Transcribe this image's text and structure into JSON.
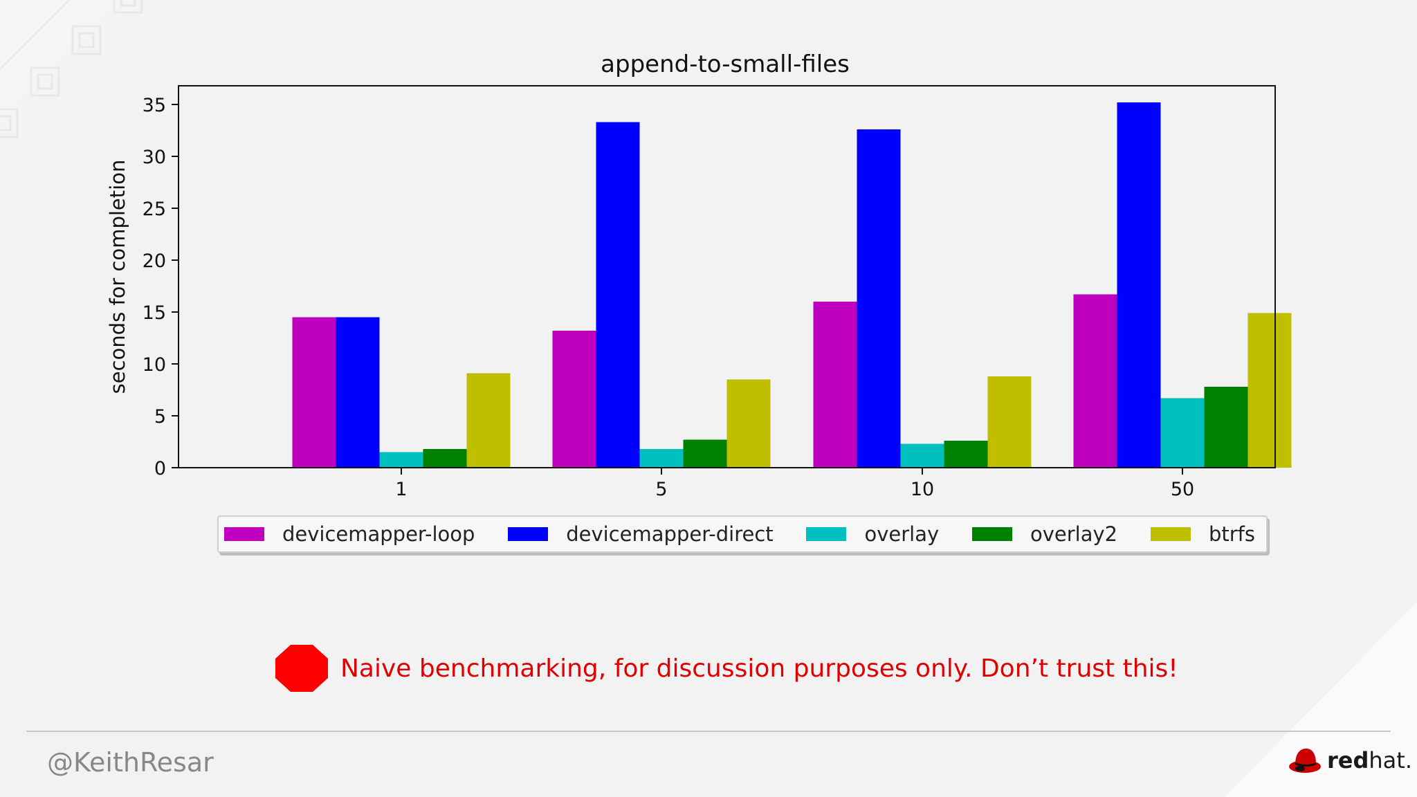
{
  "chart_data": {
    "type": "bar",
    "title": "append-to-small-files",
    "ylabel": "seconds for completion",
    "xlabel": "",
    "categories": [
      "1",
      "5",
      "10",
      "50"
    ],
    "ylim": [
      0,
      37
    ],
    "yticks": [
      0,
      5,
      10,
      15,
      20,
      25,
      30,
      35
    ],
    "series": [
      {
        "name": "devicemapper-loop",
        "color": "#bf00bf",
        "values": [
          14.5,
          13.2,
          16.0,
          16.7
        ]
      },
      {
        "name": "devicemapper-direct",
        "color": "#0000ff",
        "values": [
          14.5,
          33.3,
          32.6,
          35.2
        ]
      },
      {
        "name": "overlay",
        "color": "#00bfbf",
        "values": [
          1.5,
          1.8,
          2.3,
          6.7
        ]
      },
      {
        "name": "overlay2",
        "color": "#008000",
        "values": [
          1.8,
          2.7,
          2.6,
          7.8
        ]
      },
      {
        "name": "btrfs",
        "color": "#bfbf00",
        "values": [
          9.1,
          8.5,
          8.8,
          14.9
        ]
      }
    ],
    "legend_position": "bottom",
    "grid": false
  },
  "warning": {
    "text": "Naive benchmarking, for discussion purposes only.  Don’t trust this!",
    "icon": "stop-sign-icon",
    "color": "#e00000"
  },
  "footer": {
    "handle": "@KeithResar",
    "logo_bold": "red",
    "logo_light": "hat."
  }
}
